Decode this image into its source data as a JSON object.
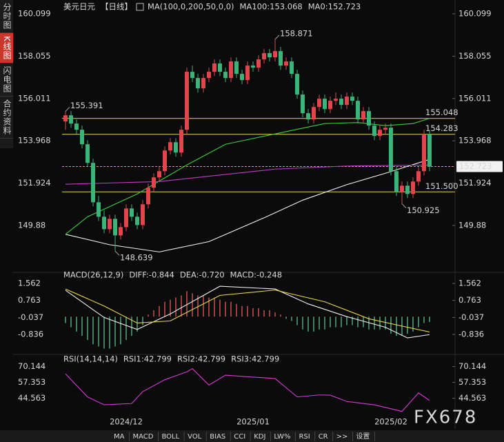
{
  "chart_data": [
    {
      "type": "candlestick",
      "legend": [
        {
          "text": "美元日元",
          "color": "#e8e8e8"
        },
        {
          "text": "【日线】",
          "color": "#e94b3c"
        },
        {
          "text": "MA(100,0,200,50,0,0)",
          "color": "#e8e8e8"
        },
        {
          "text": "MA100:153.068",
          "color": "#e8e8e8"
        },
        {
          "text": "MA0:152.723",
          "color": "#e8d84a"
        }
      ],
      "up_color": "#e0474c",
      "down_color": "#3db37a",
      "categories": [
        null,
        null,
        null,
        null,
        null,
        null,
        null,
        null,
        null,
        null,
        null,
        "2024/12",
        null,
        null,
        null,
        null,
        null,
        null,
        null,
        null,
        null,
        null,
        null,
        null,
        null,
        null,
        null,
        null,
        null,
        null,
        null,
        null,
        null,
        null,
        "2025/01",
        null,
        null,
        null,
        null,
        null,
        null,
        null,
        null,
        null,
        null,
        null,
        null,
        null,
        null,
        null,
        null,
        null,
        null,
        null,
        null,
        null,
        null,
        null,
        null,
        "2025/02",
        null,
        null,
        null,
        null,
        null,
        null,
        null
      ],
      "candles": [
        [
          154.9,
          155.391,
          154.5,
          155.2
        ],
        [
          155.2,
          155.4,
          154.6,
          154.8
        ],
        [
          154.8,
          155.0,
          154.3,
          154.5
        ],
        [
          154.5,
          154.7,
          153.6,
          153.8
        ],
        [
          153.8,
          154.0,
          152.7,
          152.9
        ],
        [
          152.9,
          153.1,
          150.8,
          151.0
        ],
        [
          151.0,
          151.3,
          150.1,
          150.3
        ],
        [
          150.3,
          150.6,
          149.5,
          149.7
        ],
        [
          149.7,
          150.4,
          149.5,
          150.2
        ],
        [
          150.2,
          150.4,
          148.639,
          149.4
        ],
        [
          149.4,
          150.0,
          149.2,
          149.8
        ],
        [
          149.8,
          150.9,
          149.6,
          150.7
        ],
        [
          150.7,
          150.9,
          150.1,
          150.3
        ],
        [
          150.3,
          150.5,
          149.7,
          149.9
        ],
        [
          149.9,
          151.1,
          149.7,
          150.9
        ],
        [
          150.9,
          151.9,
          150.7,
          151.7
        ],
        [
          151.7,
          152.4,
          151.5,
          152.2
        ],
        [
          152.2,
          152.7,
          152.0,
          152.5
        ],
        [
          152.5,
          153.7,
          152.3,
          153.5
        ],
        [
          153.5,
          154.1,
          153.3,
          153.9
        ],
        [
          153.9,
          154.1,
          153.2,
          153.4
        ],
        [
          153.4,
          154.7,
          153.2,
          154.5
        ],
        [
          154.5,
          157.5,
          154.3,
          157.3
        ],
        [
          157.3,
          157.6,
          156.8,
          157.0
        ],
        [
          157.0,
          157.2,
          156.3,
          156.5
        ],
        [
          156.5,
          157.2,
          156.3,
          157.0
        ],
        [
          157.0,
          157.5,
          156.8,
          157.3
        ],
        [
          157.3,
          157.9,
          157.1,
          157.7
        ],
        [
          157.7,
          157.9,
          157.1,
          157.3
        ],
        [
          157.3,
          157.5,
          156.8,
          157.0
        ],
        [
          157.0,
          158.0,
          156.8,
          157.8
        ],
        [
          157.8,
          158.0,
          157.0,
          157.2
        ],
        [
          157.2,
          157.4,
          156.7,
          156.9
        ],
        [
          156.9,
          157.8,
          156.7,
          157.6
        ],
        [
          157.6,
          157.8,
          157.3,
          157.5
        ],
        [
          157.5,
          158.1,
          157.3,
          157.9
        ],
        [
          157.9,
          158.4,
          157.7,
          158.2
        ],
        [
          158.2,
          158.4,
          157.8,
          158.0
        ],
        [
          158.0,
          158.871,
          157.8,
          158.3
        ],
        [
          158.3,
          158.5,
          157.4,
          157.6
        ],
        [
          157.6,
          158.0,
          157.4,
          157.8
        ],
        [
          157.8,
          158.0,
          157.0,
          157.2
        ],
        [
          157.2,
          157.4,
          156.0,
          156.2
        ],
        [
          156.2,
          156.4,
          155.1,
          155.3
        ],
        [
          155.3,
          155.5,
          154.8,
          155.0
        ],
        [
          155.0,
          155.8,
          154.8,
          155.6
        ],
        [
          155.6,
          156.2,
          155.4,
          156.0
        ],
        [
          156.0,
          156.2,
          155.3,
          155.5
        ],
        [
          155.5,
          156.1,
          155.3,
          155.9
        ],
        [
          155.9,
          156.3,
          155.7,
          156.0
        ],
        [
          156.0,
          156.2,
          155.5,
          155.7
        ],
        [
          155.7,
          156.3,
          155.5,
          156.1
        ],
        [
          156.1,
          156.3,
          155.7,
          155.9
        ],
        [
          155.9,
          156.1,
          154.8,
          155.0
        ],
        [
          155.0,
          155.6,
          154.8,
          155.4
        ],
        [
          155.4,
          155.6,
          154.5,
          154.7
        ],
        [
          154.7,
          154.9,
          154.0,
          154.2
        ],
        [
          154.2,
          154.7,
          154.0,
          154.5
        ],
        [
          154.5,
          154.8,
          154.3,
          154.6
        ],
        [
          154.6,
          154.8,
          152.3,
          152.5
        ],
        [
          152.5,
          152.7,
          151.3,
          151.5
        ],
        [
          151.5,
          152.0,
          150.925,
          151.8
        ],
        [
          151.8,
          152.0,
          151.2,
          151.4
        ],
        [
          151.4,
          152.2,
          151.2,
          152.0
        ],
        [
          152.0,
          152.7,
          151.8,
          152.5
        ],
        [
          152.5,
          154.5,
          152.3,
          154.283
        ],
        [
          154.283,
          154.5,
          152.5,
          152.723
        ]
      ],
      "series": [
        {
          "color": "#f0f0f0",
          "x": [
            0,
            8,
            17,
            26,
            36,
            43,
            51,
            58,
            66
          ],
          "values": [
            149.45,
            148.95,
            148.6,
            149.1,
            150.25,
            151.1,
            151.85,
            152.4,
            153.068
          ]
        },
        {
          "color": "#3fcf3f",
          "x": [
            0,
            4,
            13,
            22,
            29,
            38,
            47,
            53,
            58,
            63,
            66
          ],
          "values": [
            149.45,
            150.3,
            151.4,
            152.8,
            153.8,
            154.3,
            154.8,
            154.85,
            154.7,
            154.8,
            155.048
          ]
        },
        {
          "color": "#c83ac8",
          "x": [
            0,
            17,
            38,
            51,
            66
          ],
          "values": [
            151.87,
            152.0,
            152.6,
            152.75,
            152.8
          ]
        }
      ],
      "levels": [
        {
          "value": 155.048,
          "color": "#e8d84a"
        },
        {
          "value": 154.283,
          "color": "#e8d84a"
        },
        {
          "value": 151.5,
          "label": "151.500",
          "color": "#e8d84a"
        }
      ],
      "current_price": {
        "value": 152.723,
        "color": "#f0a030"
      },
      "annotations": [
        {
          "x": 0,
          "y": 155.391,
          "color": "#e0474c"
        },
        {
          "x": 38,
          "y": 158.871,
          "color": "#e0474c"
        },
        {
          "x": 9,
          "y": 148.639,
          "color": "#3db37a"
        },
        {
          "x": 61,
          "y": 150.925,
          "color": "#3db37a"
        }
      ],
      "ylim": [
        147.78,
        160.6
      ],
      "yticks": [
        160.099,
        158.055,
        156.011,
        153.968,
        151.924,
        149.88
      ],
      "grid": false
    },
    {
      "type": "macd",
      "legend": [
        {
          "text": "MACD(26,12,9)",
          "color": "#e8e8e8"
        },
        {
          "text": "DIFF:-0.844",
          "color": "#e8e8e8"
        },
        {
          "text": "DEA:-0.720",
          "color": "#e8d84a"
        },
        {
          "text": "MACD:-0.248",
          "color": "#c83ac8"
        }
      ],
      "up_color": "#e0474c",
      "down_color": "#3db37a",
      "values": [
        -0.3,
        -0.5,
        -0.7,
        -0.9,
        -1.1,
        -1.3,
        -1.4,
        -1.5,
        -1.5,
        -1.4,
        -1.3,
        -1.1,
        -0.9,
        -0.7,
        -0.4,
        0.1,
        0.3,
        0.5,
        0.7,
        0.8,
        0.9,
        1.0,
        1.2,
        1.1,
        1.0,
        1.0,
        0.9,
        0.9,
        0.8,
        0.7,
        0.7,
        0.6,
        0.5,
        0.5,
        0.4,
        0.4,
        0.3,
        0.3,
        0.2,
        0.1,
        -0.1,
        -0.2,
        -0.4,
        -0.6,
        -0.7,
        -0.7,
        -0.6,
        -0.6,
        -0.5,
        -0.5,
        -0.5,
        -0.4,
        -0.4,
        -0.5,
        -0.5,
        -0.6,
        -0.6,
        -0.6,
        -0.6,
        -0.8,
        -0.9,
        -0.9,
        -0.8,
        -0.7,
        -0.5,
        -0.3,
        -0.248
      ],
      "series": [
        {
          "color": "#f0f0f0",
          "x": [
            0,
            7,
            13,
            19,
            28,
            38,
            44,
            51,
            58,
            62,
            66
          ],
          "values": [
            1.24,
            -0.04,
            -0.6,
            0.13,
            1.43,
            1.3,
            0.6,
            0.0,
            -0.5,
            -1.0,
            -0.844
          ]
        },
        {
          "color": "#e8d84a",
          "x": [
            0,
            7,
            13,
            19,
            28,
            38,
            47,
            55,
            62,
            66
          ],
          "values": [
            1.3,
            0.5,
            -0.3,
            -0.2,
            1.0,
            1.25,
            0.7,
            -0.1,
            -0.5,
            -0.72
          ]
        }
      ],
      "ylim": [
        -1.646,
        1.854
      ],
      "yticks": [
        1.562,
        0.763,
        -0.037,
        -0.836
      ]
    },
    {
      "type": "rsi",
      "legend": [
        {
          "text": "RSI(14,14,14)",
          "color": "#e8e8e8"
        },
        {
          "text": "RSI1:42.799",
          "color": "#e8e8e8"
        },
        {
          "text": "RSI2:42.799",
          "color": "#e8d84a"
        },
        {
          "text": "RSI3:42.799",
          "color": "#c83ac8"
        }
      ],
      "series": [
        {
          "color": "#d63ad6",
          "x": [
            0,
            4,
            7,
            12,
            14,
            18,
            22,
            23,
            26,
            29,
            34,
            38,
            42,
            46,
            48,
            51,
            56,
            61,
            64,
            66
          ],
          "values": [
            64.3,
            45.6,
            39.2,
            40.3,
            49.9,
            59.5,
            65.9,
            68.5,
            55.2,
            63.2,
            61.6,
            60.5,
            45.6,
            47.2,
            47.0,
            41.9,
            39.2,
            33.9,
            48.8,
            42.799
          ]
        }
      ],
      "ylim": [
        32,
        75.5
      ],
      "yticks": [
        70.144,
        57.353,
        44.563
      ]
    }
  ],
  "ui": {
    "sidebar": [
      "分时图",
      "K线图",
      "闪电图",
      "合约资料"
    ],
    "toolbar": [
      "MA",
      "MACD",
      "BOLL",
      "VOL",
      "BIAS",
      "CCI",
      "KDJ",
      "LW%",
      "RSI",
      "CR",
      ">>",
      "设置"
    ],
    "watermark": "FX678"
  }
}
